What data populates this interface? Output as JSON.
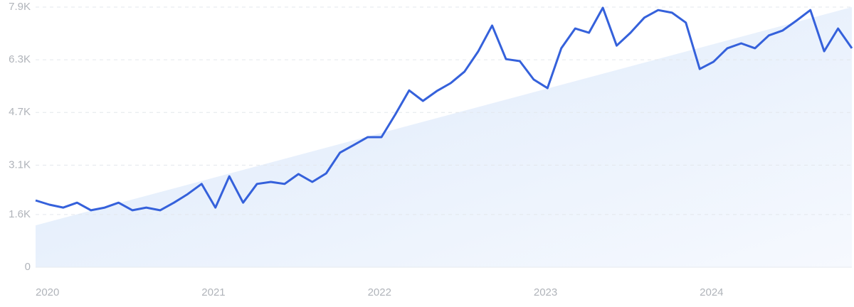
{
  "chart_data": {
    "type": "line",
    "categories": [
      "2020",
      null,
      null,
      null,
      null,
      null,
      null,
      null,
      null,
      null,
      null,
      null,
      "2021",
      null,
      null,
      null,
      null,
      null,
      null,
      null,
      null,
      null,
      null,
      null,
      "2022",
      null,
      null,
      null,
      null,
      null,
      null,
      null,
      null,
      null,
      null,
      null,
      "2023",
      null,
      null,
      null,
      null,
      null,
      null,
      null,
      null,
      null,
      null,
      null,
      "2024",
      null,
      null,
      null,
      null,
      null,
      null,
      null,
      null,
      null,
      null,
      null
    ],
    "series": [
      {
        "color": "#3561db",
        "values": [
          2030,
          1900,
          1810,
          1960,
          1730,
          1810,
          1960,
          1730,
          1810,
          1730,
          1960,
          2220,
          2530,
          1810,
          2760,
          1960,
          2530,
          2590,
          2530,
          2830,
          2590,
          2850,
          3480,
          3710,
          3950,
          3950,
          4640,
          5370,
          5050,
          5350,
          5590,
          5940,
          6560,
          7340,
          6320,
          6260,
          5700,
          5440,
          6650,
          7250,
          7120,
          7880,
          6730,
          7120,
          7580,
          7810,
          7730,
          7430,
          6020,
          6240,
          6650,
          6800,
          6650,
          7040,
          7190,
          7490,
          7810,
          6560,
          7250,
          6650
        ]
      }
    ],
    "trend": [
      1270,
      7900
    ],
    "ylim": [
      0,
      7900
    ],
    "yticks": [
      0,
      {
        "value": 1600,
        "label": "1.6K"
      },
      {
        "value": 3100,
        "label": "3.1K"
      },
      {
        "value": 4700,
        "label": "4.7K"
      },
      {
        "value": 6300,
        "label": "6.3K"
      },
      {
        "value": 7900,
        "label": "7.9K"
      }
    ],
    "grid": true
  }
}
